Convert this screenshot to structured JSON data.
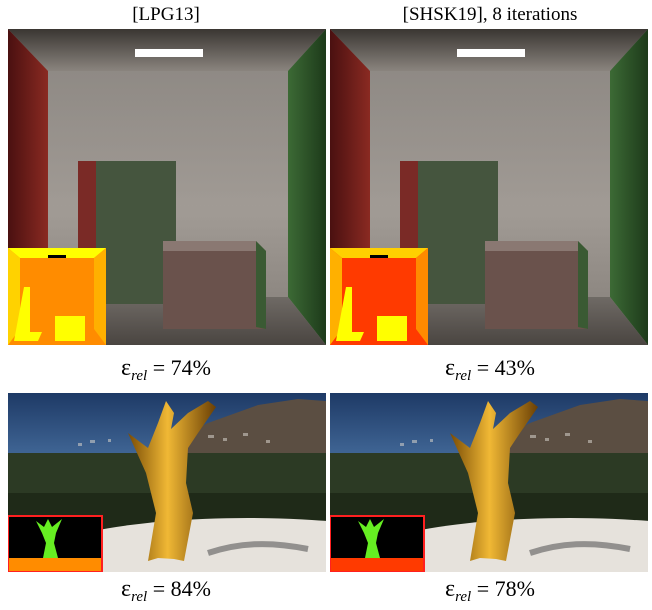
{
  "columns": [
    {
      "heading": "[LPG13]"
    },
    {
      "heading": "[SHSK19], 8 iterations"
    }
  ],
  "rows": [
    {
      "scene": "cornell-box",
      "captions": [
        {
          "symbol": "ε",
          "subscript": "rel",
          "relation": "= 74%"
        },
        {
          "symbol": "ε",
          "subscript": "rel",
          "relation": "= 43%"
        }
      ]
    },
    {
      "scene": "golden-statue",
      "captions": [
        {
          "symbol": "ε",
          "subscript": "rel",
          "relation": "= 84%"
        },
        {
          "symbol": "ε",
          "subscript": "rel",
          "relation": "= 78%"
        }
      ]
    }
  ],
  "inset_colors": {
    "lpg13": "#ff8c00",
    "shsk19": "#ff3a00",
    "highlight": "#ffff00",
    "inset_border": "#ff2020"
  }
}
